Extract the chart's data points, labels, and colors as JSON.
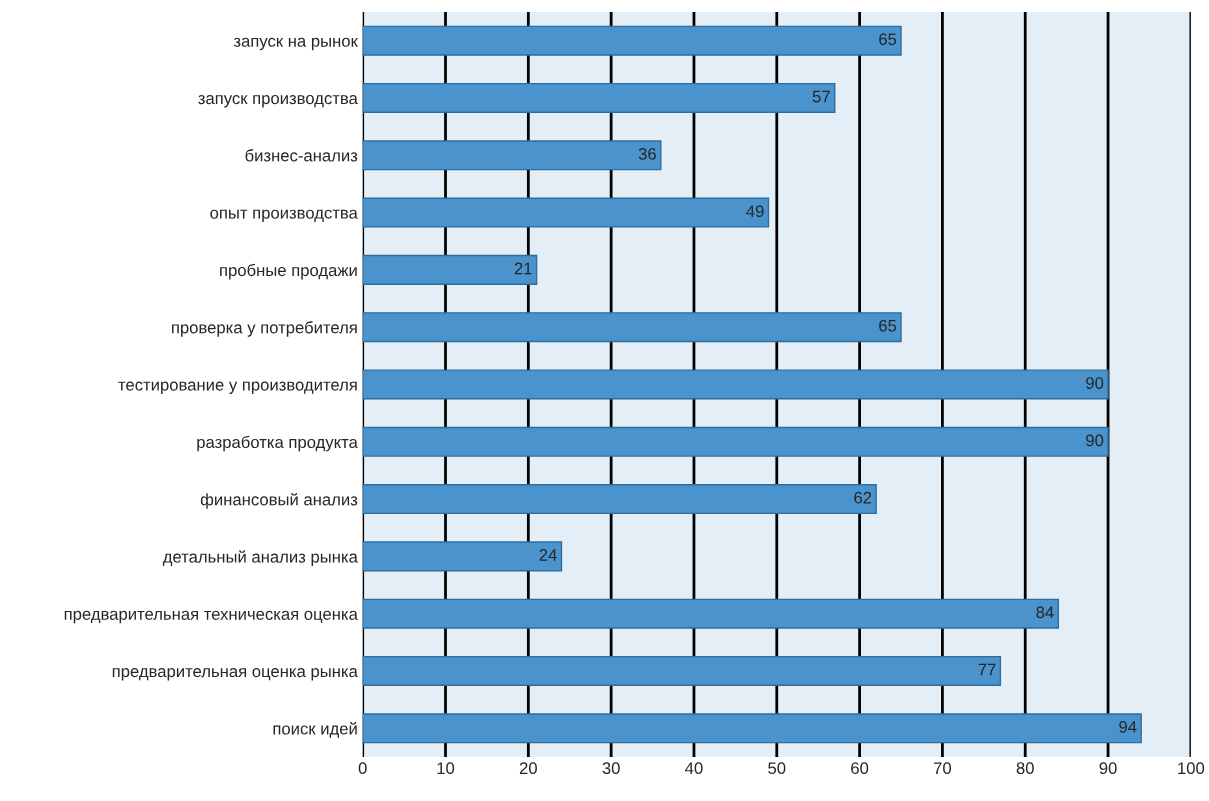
{
  "chart_data": {
    "type": "bar",
    "orientation": "horizontal",
    "categories": [
      "запуск на рынок",
      "запуск производства",
      "бизнес-анализ",
      "опыт производства",
      "пробные продажи",
      "проверка у потребителя",
      "тестирование у производителя",
      "разработка продукта",
      "финансовый анализ",
      "детальный анализ рынка",
      "предварительная техническая оценка",
      "предварительная оценка рынка",
      "поиск идей"
    ],
    "values": [
      65,
      57,
      36,
      49,
      21,
      65,
      90,
      90,
      62,
      24,
      84,
      77,
      94
    ],
    "color": "#4a93cc",
    "xlim": [
      0,
      100
    ],
    "xticks": [
      0,
      10,
      20,
      30,
      40,
      50,
      60,
      70,
      80,
      90,
      100
    ],
    "grid": "x",
    "data_labels": true
  }
}
